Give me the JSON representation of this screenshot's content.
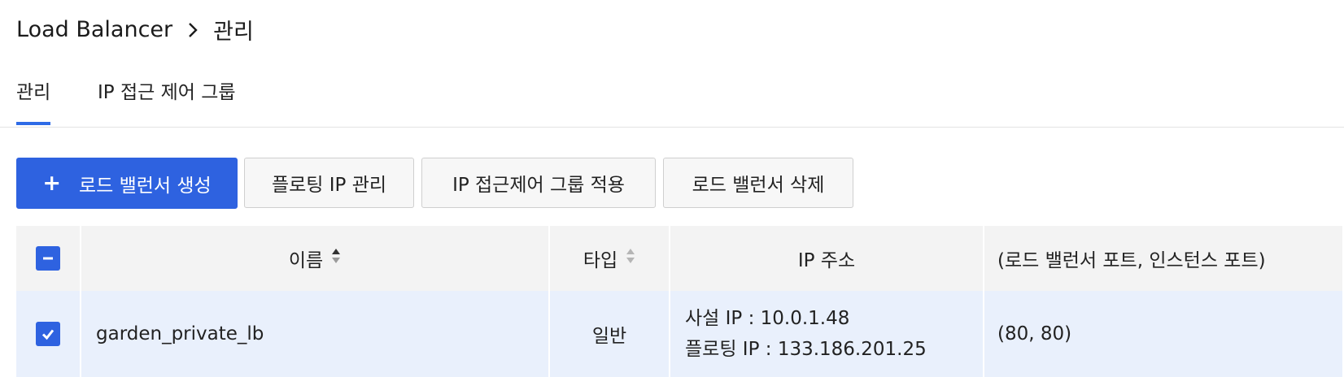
{
  "breadcrumb": {
    "root": "Load Balancer",
    "current": "관리"
  },
  "tabs": [
    {
      "label": "관리",
      "active": true
    },
    {
      "label": "IP 접근 제어 그룹",
      "active": false
    }
  ],
  "toolbar": {
    "create_label": "로드 밸런서 생성",
    "floating_ip_label": "플로팅 IP 관리",
    "acl_apply_label": "IP 접근제어 그룹 적용",
    "delete_label": "로드 밸런서 삭제"
  },
  "table": {
    "columns": {
      "name": "이름",
      "type": "타입",
      "ip": "IP 주소",
      "ports": "(로드 밸런서 포트, 인스턴스 포트)"
    },
    "rows": [
      {
        "name": "garden_private_lb",
        "type": "일반",
        "private_ip": "사설 IP : 10.0.1.48",
        "floating_ip": "플로팅 IP : 133.186.201.25",
        "ports": "(80, 80)"
      }
    ]
  },
  "colors": {
    "accent": "#2e62e0",
    "selected_row": "#e9f0fc",
    "header_bg": "#f3f3f3"
  }
}
